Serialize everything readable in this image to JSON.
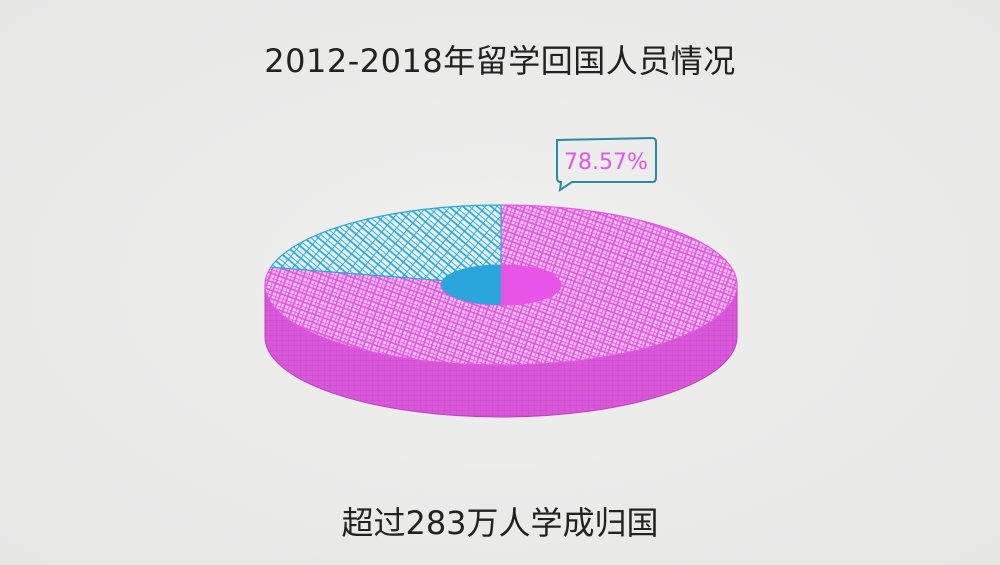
{
  "title": "2012-2018年留学回国人员情况",
  "caption": "超过283万人学成归国",
  "chart_data": {
    "type": "pie",
    "style": "3d-donut, hand-drawn hatching",
    "title": "2012-2018年留学回国人员情况",
    "slices": [
      {
        "value": 78.57,
        "label": "78.57%",
        "color": "#e655e6"
      },
      {
        "value": 21.43,
        "color": "#2aa6dd"
      }
    ],
    "legend": "none",
    "callout_border_color": "#2a8aa0"
  }
}
